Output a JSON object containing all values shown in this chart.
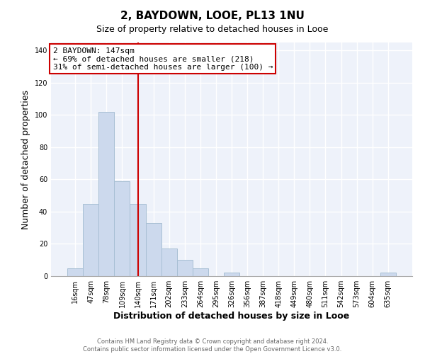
{
  "title": "2, BAYDOWN, LOOE, PL13 1NU",
  "subtitle": "Size of property relative to detached houses in Looe",
  "xlabel": "Distribution of detached houses by size in Looe",
  "ylabel": "Number of detached properties",
  "bar_labels": [
    "16sqm",
    "47sqm",
    "78sqm",
    "109sqm",
    "140sqm",
    "171sqm",
    "202sqm",
    "233sqm",
    "264sqm",
    "295sqm",
    "326sqm",
    "356sqm",
    "387sqm",
    "418sqm",
    "449sqm",
    "480sqm",
    "511sqm",
    "542sqm",
    "573sqm",
    "604sqm",
    "635sqm"
  ],
  "bar_values": [
    5,
    45,
    102,
    59,
    45,
    33,
    17,
    10,
    5,
    0,
    2,
    0,
    0,
    0,
    0,
    0,
    0,
    0,
    0,
    0,
    2
  ],
  "bar_color": "#ccd9ed",
  "bar_edge_color": "#a8bfd4",
  "vline_x_index": 4,
  "vline_color": "#cc0000",
  "annotation_line1": "2 BAYDOWN: 147sqm",
  "annotation_line2": "← 69% of detached houses are smaller (218)",
  "annotation_line3": "31% of semi-detached houses are larger (100) →",
  "annotation_box_color": "#ffffff",
  "annotation_box_edge": "#cc0000",
  "ylim": [
    0,
    145
  ],
  "yticks": [
    0,
    20,
    40,
    60,
    80,
    100,
    120,
    140
  ],
  "footer_line1": "Contains HM Land Registry data © Crown copyright and database right 2024.",
  "footer_line2": "Contains public sector information licensed under the Open Government Licence v3.0.",
  "fig_background": "#ffffff",
  "plot_background": "#eef2fa",
  "grid_color": "#ffffff",
  "title_fontsize": 11,
  "subtitle_fontsize": 9,
  "axis_label_fontsize": 9,
  "tick_fontsize": 7,
  "footer_fontsize": 6,
  "footer_color": "#666666"
}
